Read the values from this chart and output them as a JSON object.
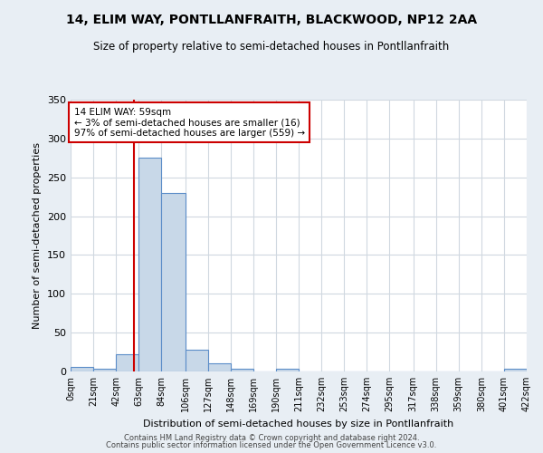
{
  "title1": "14, ELIM WAY, PONTLLANFRAITH, BLACKWOOD, NP12 2AA",
  "title2": "Size of property relative to semi-detached houses in Pontllanfraith",
  "xlabel": "Distribution of semi-detached houses by size in Pontllanfraith",
  "ylabel": "Number of semi-detached properties",
  "bin_edges": [
    0,
    21,
    42,
    63,
    84,
    106,
    127,
    148,
    169,
    190,
    211,
    232,
    253,
    274,
    295,
    317,
    338,
    359,
    380,
    401,
    422
  ],
  "bin_labels": [
    "0sqm",
    "21sqm",
    "42sqm",
    "63sqm",
    "84sqm",
    "106sqm",
    "127sqm",
    "148sqm",
    "169sqm",
    "190sqm",
    "211sqm",
    "232sqm",
    "253sqm",
    "274sqm",
    "295sqm",
    "317sqm",
    "338sqm",
    "359sqm",
    "380sqm",
    "401sqm",
    "422sqm"
  ],
  "bar_heights": [
    6,
    4,
    22,
    275,
    230,
    28,
    10,
    3,
    0,
    3,
    0,
    0,
    0,
    0,
    0,
    0,
    0,
    0,
    0,
    3
  ],
  "bar_color": "#c8d8e8",
  "bar_edge_color": "#5b8dc8",
  "property_size": 59,
  "red_line_color": "#cc0000",
  "annotation_text": "14 ELIM WAY: 59sqm\n← 3% of semi-detached houses are smaller (16)\n97% of semi-detached houses are larger (559) →",
  "annotation_box_color": "#ffffff",
  "annotation_box_edge": "#cc0000",
  "ylim": [
    0,
    350
  ],
  "yticks": [
    0,
    50,
    100,
    150,
    200,
    250,
    300,
    350
  ],
  "fig_bg_color": "#e8eef4",
  "plot_bg_color": "#ffffff",
  "grid_color": "#d0d8e0",
  "footer1": "Contains HM Land Registry data © Crown copyright and database right 2024.",
  "footer2": "Contains public sector information licensed under the Open Government Licence v3.0."
}
